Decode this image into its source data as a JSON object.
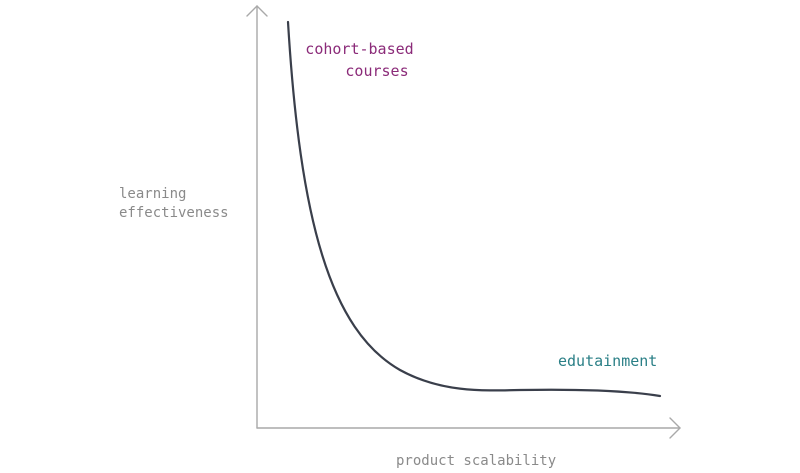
{
  "axes": {
    "y_label_lines": [
      "learning",
      "effectiveness"
    ],
    "x_label": "product scalability"
  },
  "annotations": {
    "top_left_lines": [
      "cohort-based",
      "courses"
    ],
    "bottom_right": "edutainment"
  },
  "colors": {
    "axis": "#a9a9a9",
    "curve": "#3a3f4b",
    "cohort_label": "#8b2b79",
    "edutainment_label": "#2a7f86",
    "axis_label": "#8a8a8a"
  }
}
